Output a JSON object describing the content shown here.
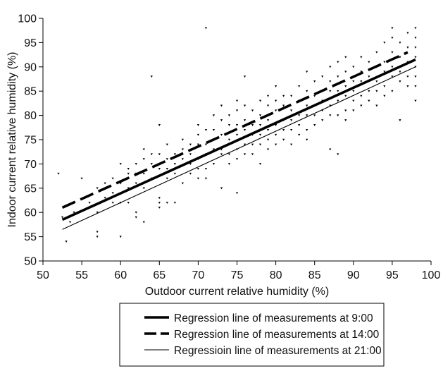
{
  "chart_data": {
    "type": "scatter",
    "title": "",
    "xlabel": "Outdoor current relative humidity (%)",
    "ylabel": "Indoor current relative humidity (%)",
    "xlim": [
      50,
      100
    ],
    "ylim": [
      50,
      100
    ],
    "x_ticks": [
      "50",
      "55",
      "60",
      "65",
      "70",
      "75",
      "80",
      "85",
      "90",
      "95",
      "100"
    ],
    "y_ticks": [
      "50",
      "55",
      "60",
      "65",
      "70",
      "75",
      "80",
      "85",
      "90",
      "95",
      "100"
    ],
    "grid": false,
    "legend_placement": "bottom",
    "marker": "small black triangles",
    "scatter_points": [
      [
        52,
        68
      ],
      [
        52.5,
        59
      ],
      [
        53,
        54
      ],
      [
        53.5,
        58
      ],
      [
        54,
        60
      ],
      [
        55,
        67
      ],
      [
        56,
        62
      ],
      [
        57,
        65
      ],
      [
        57,
        60
      ],
      [
        57,
        56
      ],
      [
        57,
        55
      ],
      [
        58,
        66
      ],
      [
        58,
        63
      ],
      [
        59,
        67
      ],
      [
        59,
        64
      ],
      [
        59,
        62
      ],
      [
        60,
        70
      ],
      [
        60,
        66
      ],
      [
        60,
        62
      ],
      [
        60,
        55
      ],
      [
        61,
        69
      ],
      [
        61,
        68
      ],
      [
        61,
        65
      ],
      [
        61,
        62
      ],
      [
        62,
        70
      ],
      [
        62,
        68
      ],
      [
        62,
        66
      ],
      [
        62,
        60
      ],
      [
        62,
        59
      ],
      [
        63,
        73
      ],
      [
        63,
        71
      ],
      [
        63,
        68
      ],
      [
        63,
        65
      ],
      [
        63,
        58
      ],
      [
        64,
        72
      ],
      [
        64,
        70
      ],
      [
        64,
        67
      ],
      [
        64,
        88
      ],
      [
        65,
        78
      ],
      [
        65,
        72
      ],
      [
        65,
        69
      ],
      [
        65,
        63
      ],
      [
        65,
        62
      ],
      [
        65,
        61
      ],
      [
        66,
        74
      ],
      [
        66,
        71
      ],
      [
        66,
        69
      ],
      [
        66,
        67
      ],
      [
        66,
        62
      ],
      [
        67,
        72
      ],
      [
        67,
        70
      ],
      [
        67,
        68
      ],
      [
        67,
        62
      ],
      [
        68,
        75
      ],
      [
        68,
        73
      ],
      [
        68,
        71
      ],
      [
        68,
        66
      ],
      [
        69,
        74
      ],
      [
        69,
        72
      ],
      [
        69,
        70
      ],
      [
        69,
        68
      ],
      [
        70,
        78
      ],
      [
        70,
        76
      ],
      [
        70,
        74
      ],
      [
        70,
        71
      ],
      [
        70,
        69
      ],
      [
        70,
        67
      ],
      [
        71,
        98
      ],
      [
        71,
        77
      ],
      [
        71,
        74
      ],
      [
        71,
        72
      ],
      [
        71,
        69
      ],
      [
        71,
        67
      ],
      [
        72,
        80
      ],
      [
        72,
        77
      ],
      [
        72,
        75
      ],
      [
        72,
        73
      ],
      [
        72,
        70
      ],
      [
        73,
        82
      ],
      [
        73,
        79
      ],
      [
        73,
        76
      ],
      [
        73,
        73
      ],
      [
        73,
        72
      ],
      [
        73,
        65
      ],
      [
        74,
        80
      ],
      [
        74,
        78
      ],
      [
        74,
        75
      ],
      [
        74,
        72
      ],
      [
        74,
        70
      ],
      [
        75,
        83
      ],
      [
        75,
        81
      ],
      [
        75,
        78
      ],
      [
        75,
        76
      ],
      [
        75,
        73
      ],
      [
        75,
        71
      ],
      [
        75,
        64
      ],
      [
        76,
        88
      ],
      [
        76,
        82
      ],
      [
        76,
        79
      ],
      [
        76,
        77
      ],
      [
        76,
        74
      ],
      [
        76,
        72
      ],
      [
        77,
        81
      ],
      [
        77,
        78
      ],
      [
        77,
        76
      ],
      [
        77,
        74
      ],
      [
        77,
        72
      ],
      [
        78,
        83
      ],
      [
        78,
        80
      ],
      [
        78,
        78
      ],
      [
        78,
        76
      ],
      [
        78,
        74
      ],
      [
        78,
        70
      ],
      [
        79,
        84
      ],
      [
        79,
        82
      ],
      [
        79,
        79
      ],
      [
        79,
        77
      ],
      [
        79,
        75
      ],
      [
        79,
        73
      ],
      [
        80,
        86
      ],
      [
        80,
        83
      ],
      [
        80,
        81
      ],
      [
        80,
        78
      ],
      [
        80,
        76
      ],
      [
        80,
        74
      ],
      [
        81,
        84
      ],
      [
        81,
        82
      ],
      [
        81,
        79
      ],
      [
        81,
        77
      ],
      [
        81,
        75
      ],
      [
        82,
        84
      ],
      [
        82,
        81
      ],
      [
        82,
        79
      ],
      [
        82,
        77
      ],
      [
        82,
        74
      ],
      [
        83,
        86
      ],
      [
        83,
        83
      ],
      [
        83,
        80
      ],
      [
        83,
        78
      ],
      [
        83,
        76
      ],
      [
        84,
        89
      ],
      [
        84,
        85
      ],
      [
        84,
        82
      ],
      [
        84,
        80
      ],
      [
        84,
        77
      ],
      [
        84,
        75
      ],
      [
        85,
        87
      ],
      [
        85,
        84
      ],
      [
        85,
        82
      ],
      [
        85,
        80
      ],
      [
        85,
        78
      ],
      [
        86,
        88
      ],
      [
        86,
        85
      ],
      [
        86,
        83
      ],
      [
        86,
        81
      ],
      [
        86,
        79
      ],
      [
        87,
        90
      ],
      [
        87,
        87
      ],
      [
        87,
        85
      ],
      [
        87,
        82
      ],
      [
        87,
        80
      ],
      [
        87,
        73
      ],
      [
        88,
        91
      ],
      [
        88,
        88
      ],
      [
        88,
        85
      ],
      [
        88,
        83
      ],
      [
        88,
        80
      ],
      [
        88,
        72
      ],
      [
        89,
        92
      ],
      [
        89,
        89
      ],
      [
        89,
        86
      ],
      [
        89,
        84
      ],
      [
        89,
        81
      ],
      [
        89,
        79
      ],
      [
        90,
        90
      ],
      [
        90,
        87
      ],
      [
        90,
        85
      ],
      [
        90,
        83
      ],
      [
        90,
        81
      ],
      [
        91,
        92
      ],
      [
        91,
        89
      ],
      [
        91,
        87
      ],
      [
        91,
        84
      ],
      [
        91,
        82
      ],
      [
        92,
        91
      ],
      [
        92,
        88
      ],
      [
        92,
        85
      ],
      [
        92,
        83
      ],
      [
        93,
        93
      ],
      [
        93,
        90
      ],
      [
        93,
        87
      ],
      [
        93,
        85
      ],
      [
        93,
        82
      ],
      [
        94,
        95
      ],
      [
        94,
        91
      ],
      [
        94,
        89
      ],
      [
        94,
        86
      ],
      [
        94,
        84
      ],
      [
        95,
        98
      ],
      [
        95,
        96
      ],
      [
        95,
        93
      ],
      [
        95,
        90
      ],
      [
        95,
        88
      ],
      [
        95,
        85
      ],
      [
        96,
        95
      ],
      [
        96,
        92
      ],
      [
        96,
        89
      ],
      [
        96,
        87
      ],
      [
        96,
        79
      ],
      [
        97,
        97
      ],
      [
        97,
        94
      ],
      [
        97,
        91
      ],
      [
        97,
        88
      ],
      [
        97,
        86
      ],
      [
        98,
        98
      ],
      [
        98,
        96
      ],
      [
        98,
        94
      ],
      [
        98,
        92
      ],
      [
        98,
        90
      ],
      [
        98,
        88
      ],
      [
        98,
        86
      ],
      [
        98,
        83
      ]
    ],
    "series": [
      {
        "name": "Regression line of measurements at 9:00",
        "style": "thick-solid",
        "x": [
          52.5,
          98
        ],
        "y": [
          58.5,
          91.5
        ]
      },
      {
        "name": "Regression line of measurements at 14:00",
        "style": "thick-dashed",
        "x": [
          52.5,
          97
        ],
        "y": [
          61,
          93
        ]
      },
      {
        "name": "Regressioin line of measurements at 21:00",
        "style": "thin-solid",
        "x": [
          52.5,
          98
        ],
        "y": [
          56.5,
          90
        ]
      }
    ]
  }
}
